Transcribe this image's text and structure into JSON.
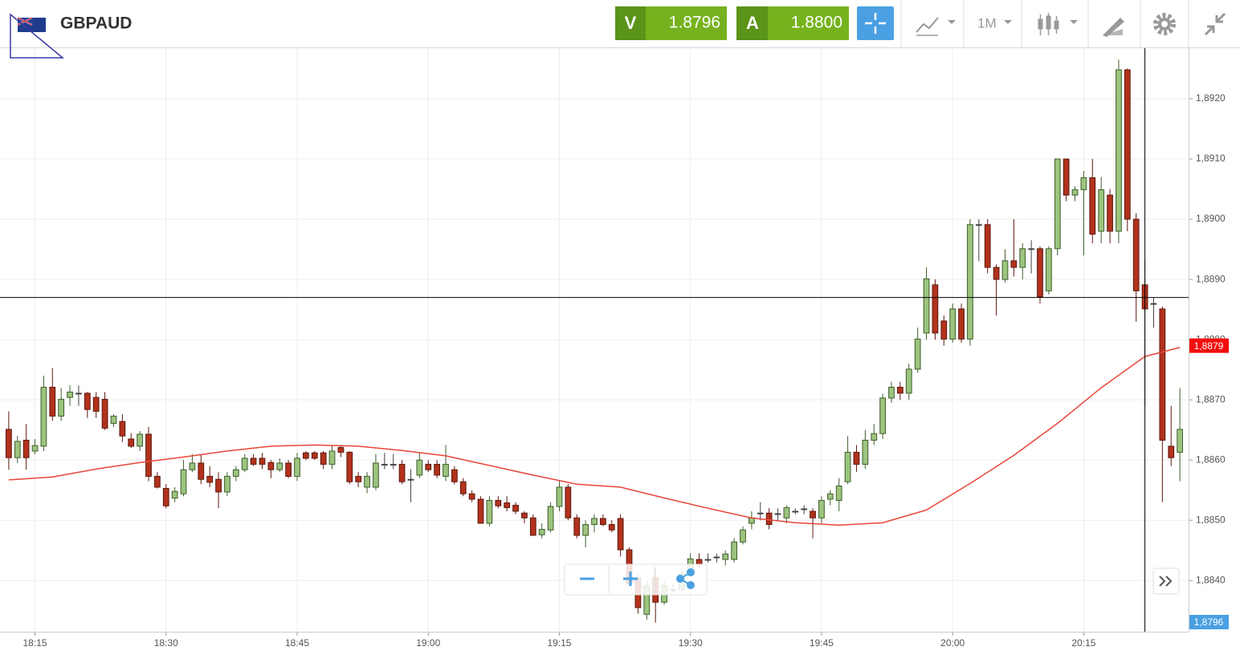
{
  "header": {
    "symbol": "GBPAUD",
    "sell": {
      "label": "V",
      "price": "1.8796"
    },
    "buy": {
      "label": "A",
      "price": "1.8800"
    },
    "timeframe": "1M"
  },
  "chart_data": {
    "type": "candlestick",
    "x": [
      "18:12",
      "18:13",
      "18:14",
      "18:15",
      "18:16",
      "18:17",
      "18:18",
      "18:19",
      "18:20",
      "18:21",
      "18:22",
      "18:23",
      "18:24",
      "18:25",
      "18:26",
      "18:27",
      "18:28",
      "18:29",
      "18:30",
      "18:31",
      "18:32",
      "18:33",
      "18:34",
      "18:35",
      "18:36",
      "18:37",
      "18:38",
      "18:39",
      "18:40",
      "18:41",
      "18:42",
      "18:43",
      "18:44",
      "18:45",
      "18:46",
      "18:47",
      "18:48",
      "18:49",
      "18:50",
      "18:51",
      "18:52",
      "18:53",
      "18:54",
      "18:55",
      "18:56",
      "18:57",
      "18:58",
      "18:59",
      "19:00",
      "19:01",
      "19:02",
      "19:03",
      "19:04",
      "19:05",
      "19:06",
      "19:07",
      "19:08",
      "19:09",
      "19:10",
      "19:11",
      "19:12",
      "19:13",
      "19:14",
      "19:15",
      "19:16",
      "19:17",
      "19:18",
      "19:19",
      "19:20",
      "19:21",
      "19:22",
      "19:23",
      "19:24",
      "19:25",
      "19:26",
      "19:27",
      "19:28",
      "19:29",
      "19:30",
      "19:31",
      "19:32",
      "19:33",
      "19:34",
      "19:35",
      "19:36",
      "19:37",
      "19:38",
      "19:39",
      "19:40",
      "19:41",
      "19:42",
      "19:43",
      "19:44",
      "19:45",
      "19:46",
      "19:47",
      "19:48",
      "19:49",
      "19:50",
      "19:51",
      "19:52",
      "19:53",
      "19:54",
      "19:55",
      "19:56",
      "19:57",
      "19:58",
      "19:59",
      "20:00",
      "20:01",
      "20:02",
      "20:03",
      "20:04",
      "20:05",
      "20:06",
      "20:07",
      "20:08",
      "20:09",
      "20:10",
      "20:11",
      "20:12",
      "20:13",
      "20:14",
      "20:15",
      "20:16",
      "20:17",
      "20:18",
      "20:19",
      "20:20",
      "20:21",
      "20:22",
      "20:23",
      "20:24",
      "20:25",
      "20:26"
    ],
    "open": [
      1.88651,
      1.88604,
      1.88633,
      1.88615,
      1.88623,
      1.88721,
      1.88673,
      1.88704,
      1.88711,
      1.88711,
      1.88704,
      1.88701,
      1.88661,
      1.88664,
      1.88635,
      1.88623,
      1.88643,
      1.88573,
      1.88553,
      1.88537,
      1.88544,
      1.88584,
      1.88595,
      1.88573,
      1.88568,
      1.88547,
      1.88573,
      1.88584,
      1.88603,
      1.88603,
      1.88596,
      1.88584,
      1.88595,
      1.88573,
      1.88612,
      1.88612,
      1.88612,
      1.88593,
      1.88621,
      1.88613,
      1.88573,
      1.88555,
      1.88555,
      1.88593,
      1.88593,
      1.88593,
      1.88568,
      1.88575,
      1.88593,
      1.88593,
      1.88573,
      1.88584,
      1.88564,
      1.88544,
      1.88535,
      1.88495,
      1.88533,
      1.88529,
      1.88525,
      1.88512,
      1.88504,
      1.88476,
      1.88484,
      1.88523,
      1.88555,
      1.88504,
      1.88475,
      1.88493,
      1.88503,
      1.88493,
      1.88503,
      1.88451,
      1.88404,
      1.88344,
      1.88405,
      1.88364,
      1.88385,
      1.88385,
      1.88417,
      1.88435,
      1.88435,
      1.88439,
      1.88435,
      1.88435,
      1.88464,
      1.88495,
      1.88512,
      1.88512,
      1.88511,
      1.88504,
      1.88515,
      1.88519,
      1.88515,
      1.88504,
      1.88535,
      1.88533,
      1.88564,
      1.88613,
      1.88593,
      1.88633,
      1.88644,
      1.88703,
      1.88721,
      1.88711,
      1.88751,
      1.88811,
      1.88891,
      1.88831,
      1.88801,
      1.88851,
      1.88801,
      1.88991,
      1.88991,
      1.8892,
      1.889,
      1.88931,
      1.8892,
      1.88951,
      1.88951,
      1.88881,
      1.88951,
      1.891,
      1.8904,
      1.89049,
      1.89069,
      1.8898,
      1.8904,
      1.8898,
      1.89248,
      1.89,
      1.88891,
      1.8886,
      1.88851,
      1.88623,
      1.88613
    ],
    "high": [
      1.88681,
      1.8864,
      1.8866,
      1.88635,
      1.8874,
      1.88753,
      1.8872,
      1.88724,
      1.88724,
      1.88713,
      1.88713,
      1.88713,
      1.88676,
      1.88676,
      1.88645,
      1.88648,
      1.88655,
      1.8858,
      1.8856,
      1.88555,
      1.886,
      1.8861,
      1.8861,
      1.8859,
      1.8858,
      1.8858,
      1.8859,
      1.8861,
      1.8861,
      1.88612,
      1.886,
      1.88603,
      1.886,
      1.88612,
      1.88615,
      1.88615,
      1.88615,
      1.88625,
      1.88625,
      1.88615,
      1.8858,
      1.8858,
      1.8861,
      1.88612,
      1.8861,
      1.886,
      1.88585,
      1.88612,
      1.886,
      1.886,
      1.88625,
      1.8859,
      1.8857,
      1.8855,
      1.8854,
      1.8854,
      1.8854,
      1.8854,
      1.8853,
      1.88515,
      1.8851,
      1.88495,
      1.8853,
      1.88565,
      1.8856,
      1.8851,
      1.885,
      1.8851,
      1.8851,
      1.885,
      1.8851,
      1.88455,
      1.8841,
      1.884,
      1.8842,
      1.884,
      1.88395,
      1.8842,
      1.88445,
      1.88445,
      1.88445,
      1.88445,
      1.8845,
      1.8847,
      1.8849,
      1.88515,
      1.8853,
      1.8852,
      1.8852,
      1.88525,
      1.8852,
      1.88525,
      1.8852,
      1.8854,
      1.8855,
      1.8857,
      1.8864,
      1.88625,
      1.8865,
      1.8866,
      1.8871,
      1.8873,
      1.8873,
      1.8876,
      1.8882,
      1.8892,
      1.889,
      1.8884,
      1.8886,
      1.8886,
      1.89,
      1.89,
      1.89,
      1.88925,
      1.8895,
      1.89,
      1.8896,
      1.88965,
      1.88955,
      1.88955,
      1.891,
      1.891,
      1.89055,
      1.8908,
      1.891,
      1.8907,
      1.8905,
      1.89265,
      1.8925,
      1.8901,
      1.8893,
      1.8887,
      1.88855,
      1.8869,
      1.8872
    ],
    "low": [
      1.88584,
      1.88595,
      1.88584,
      1.8861,
      1.88615,
      1.88665,
      1.88665,
      1.8869,
      1.8869,
      1.8867,
      1.8867,
      1.8865,
      1.88655,
      1.8863,
      1.8862,
      1.88615,
      1.88565,
      1.88553,
      1.8852,
      1.8853,
      1.8854,
      1.8858,
      1.8856,
      1.88555,
      1.8852,
      1.8854,
      1.88565,
      1.8858,
      1.8859,
      1.88585,
      1.8857,
      1.8858,
      1.8857,
      1.88565,
      1.886,
      1.886,
      1.88585,
      1.88585,
      1.88605,
      1.8856,
      1.88555,
      1.88545,
      1.8855,
      1.88585,
      1.88585,
      1.8856,
      1.8853,
      1.8857,
      1.8858,
      1.8857,
      1.88565,
      1.8856,
      1.8854,
      1.8853,
      1.88495,
      1.8849,
      1.8852,
      1.88515,
      1.8851,
      1.88495,
      1.88475,
      1.8847,
      1.8848,
      1.88515,
      1.885,
      1.8847,
      1.88455,
      1.8848,
      1.8849,
      1.8848,
      1.8844,
      1.8839,
      1.88345,
      1.88335,
      1.8833,
      1.8836,
      1.8838,
      1.8838,
      1.8841,
      1.8842,
      1.8843,
      1.8843,
      1.88425,
      1.8843,
      1.8846,
      1.88485,
      1.885,
      1.88485,
      1.885,
      1.88495,
      1.8851,
      1.8851,
      1.8847,
      1.88495,
      1.88525,
      1.88515,
      1.8856,
      1.8858,
      1.88585,
      1.88625,
      1.88635,
      1.88695,
      1.887,
      1.887,
      1.88745,
      1.888,
      1.888,
      1.8879,
      1.88795,
      1.88795,
      1.8879,
      1.8893,
      1.8891,
      1.8884,
      1.88895,
      1.88905,
      1.889,
      1.8891,
      1.8886,
      1.88875,
      1.8894,
      1.8903,
      1.8903,
      1.8894,
      1.8896,
      1.8896,
      1.8896,
      1.8896,
      1.8898,
      1.8883,
      1.8869,
      1.8882,
      1.8853,
      1.8859,
      1.88565
    ],
    "close": [
      1.88604,
      1.88631,
      1.88604,
      1.88624,
      1.88721,
      1.88673,
      1.88701,
      1.88713,
      1.88711,
      1.88684,
      1.88681,
      1.88653,
      1.88673,
      1.8864,
      1.88623,
      1.88643,
      1.88573,
      1.88555,
      1.88524,
      1.88548,
      1.88584,
      1.88595,
      1.88568,
      1.88563,
      1.88547,
      1.88573,
      1.88584,
      1.88603,
      1.88593,
      1.88593,
      1.88584,
      1.88595,
      1.88573,
      1.88603,
      1.88603,
      1.88603,
      1.88593,
      1.88615,
      1.88613,
      1.88564,
      1.88564,
      1.88573,
      1.88595,
      1.88593,
      1.88593,
      1.88564,
      1.88568,
      1.886,
      1.88584,
      1.88575,
      1.88593,
      1.88564,
      1.88544,
      1.88535,
      1.88495,
      1.88533,
      1.88524,
      1.88521,
      1.88515,
      1.88504,
      1.88475,
      1.88485,
      1.88523,
      1.88555,
      1.88504,
      1.88475,
      1.88493,
      1.88503,
      1.88493,
      1.88484,
      1.88451,
      1.88395,
      1.88355,
      1.88391,
      1.88364,
      1.88391,
      1.88385,
      1.88411,
      1.88436,
      1.88427,
      1.88435,
      1.88439,
      1.88444,
      1.88464,
      1.88484,
      1.88504,
      1.88512,
      1.88493,
      1.88511,
      1.88521,
      1.88515,
      1.88519,
      1.88504,
      1.88533,
      1.88544,
      1.88557,
      1.88613,
      1.88593,
      1.88633,
      1.88644,
      1.88703,
      1.88721,
      1.88711,
      1.88751,
      1.88801,
      1.88901,
      1.88811,
      1.88801,
      1.88851,
      1.88801,
      1.88991,
      1.88991,
      1.8892,
      1.889,
      1.88931,
      1.8892,
      1.88951,
      1.88951,
      1.88871,
      1.88951,
      1.891,
      1.8904,
      1.89049,
      1.89069,
      1.88975,
      1.89049,
      1.8898,
      1.89248,
      1.89,
      1.88881,
      1.88851,
      1.8886,
      1.88633,
      1.88604,
      1.88651
    ],
    "up_color": "#9cc47e",
    "down_color": "#b2321c",
    "moving_average": {
      "color": "#e8463a",
      "x": [
        "18:12",
        "18:17",
        "18:22",
        "18:27",
        "18:32",
        "18:37",
        "18:42",
        "18:47",
        "18:52",
        "18:57",
        "19:02",
        "19:07",
        "19:12",
        "19:17",
        "19:22",
        "19:27",
        "19:32",
        "19:37",
        "19:42",
        "19:47",
        "19:52",
        "19:57",
        "20:02",
        "20:07",
        "20:12",
        "20:17",
        "20:22",
        "20:26"
      ],
      "values": [
        1.88567,
        1.88572,
        1.88585,
        1.88596,
        1.88605,
        1.88615,
        1.88623,
        1.88625,
        1.88623,
        1.88616,
        1.88607,
        1.88591,
        1.88575,
        1.8856,
        1.88555,
        1.88537,
        1.8852,
        1.88504,
        1.88496,
        1.88492,
        1.88496,
        1.88517,
        1.88561,
        1.88608,
        1.88661,
        1.8872,
        1.88772,
        1.88787
      ]
    },
    "current_price": {
      "value": 1.8879,
      "label": "1,8879"
    },
    "bid_price": {
      "value": 1.8796,
      "label": "1,8796"
    },
    "crosshair": {
      "x": "20:22",
      "y": 1.8887
    },
    "xlim": [
      "18:11",
      "20:27"
    ],
    "xticks": [
      "18:15",
      "18:30",
      "18:45",
      "19:00",
      "19:15",
      "19:30",
      "19:45",
      "20:00",
      "20:15"
    ],
    "ylim": [
      1.88315,
      1.89284
    ],
    "yticks": [
      {
        "value": 1.884,
        "label": "1,8840"
      },
      {
        "value": 1.885,
        "label": "1,8850"
      },
      {
        "value": 1.886,
        "label": "1,8860"
      },
      {
        "value": 1.887,
        "label": "1,8870"
      },
      {
        "value": 1.888,
        "label": "1,8880"
      },
      {
        "value": 1.889,
        "label": "1,8890"
      },
      {
        "value": 1.89,
        "label": "1,8900"
      },
      {
        "value": 1.891,
        "label": "1,8910"
      },
      {
        "value": 1.892,
        "label": "1,8920"
      }
    ],
    "grid": true
  }
}
